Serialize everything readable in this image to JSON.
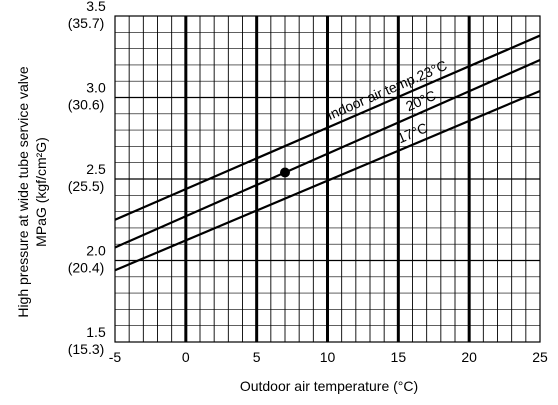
{
  "chart_data": {
    "type": "line",
    "xlabel": "Outdoor air temperature (°C)",
    "ylabel_line1": "High pressure at wide tube service valve",
    "ylabel_line2": "MPaG (kgf/cm²G)",
    "xlim": [
      -5,
      25
    ],
    "ylim": [
      1.5,
      3.5
    ],
    "x_tick_labels": [
      {
        "x": -5,
        "label": "-5"
      },
      {
        "x": 0,
        "label": "0"
      },
      {
        "x": 5,
        "label": "5"
      },
      {
        "x": 10,
        "label": "10"
      },
      {
        "x": 15,
        "label": "15"
      },
      {
        "x": 20,
        "label": "20"
      },
      {
        "x": 25,
        "label": "25"
      }
    ],
    "y_tick_labels": [
      {
        "y": 3.5,
        "primary": "3.5",
        "secondary": "(35.7)"
      },
      {
        "y": 3.0,
        "primary": "3.0",
        "secondary": "(30.6)"
      },
      {
        "y": 2.5,
        "primary": "2.5",
        "secondary": "(25.5)"
      },
      {
        "y": 2.0,
        "primary": "2.0",
        "secondary": "(20.4)"
      },
      {
        "y": 1.5,
        "primary": "1.5",
        "secondary": "(15.3)"
      }
    ],
    "grid": {
      "x_minor_step": 1,
      "x_major_step": 5,
      "y_minor_step": 0.1,
      "y_major_step": 0.5
    },
    "series": [
      {
        "name": "Indoor air temp.23°C",
        "x": [
          -5,
          25
        ],
        "y": [
          2.25,
          3.38
        ]
      },
      {
        "name": "20°C",
        "x": [
          -5,
          25
        ],
        "y": [
          2.08,
          3.23
        ]
      },
      {
        "name": "17°C",
        "x": [
          -5,
          25
        ],
        "y": [
          1.94,
          3.04
        ]
      }
    ],
    "marker": {
      "x": 7,
      "y": 2.54
    }
  },
  "colors": {
    "line": "#000000",
    "grid": "#000000",
    "background": "#ffffff"
  }
}
